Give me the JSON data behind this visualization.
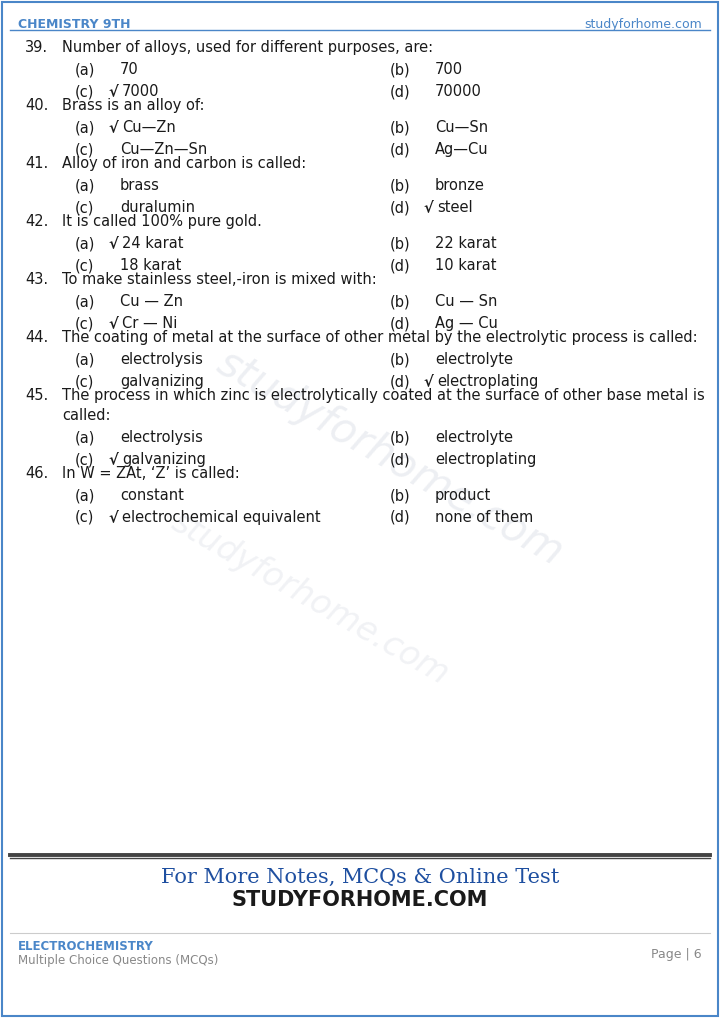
{
  "header_left": "CHEMISTRY 9TH",
  "header_right": "studyforhome.com",
  "header_color": "#4a86c8",
  "bg_color": "#ffffff",
  "border_color": "#4a86c8",
  "questions": [
    {
      "num": "39.",
      "text": "Number of alloys, used for different purposes, are:",
      "multiline": false,
      "options": [
        {
          "label": "(a)",
          "check": false,
          "text": "70"
        },
        {
          "label": "(b)",
          "check": false,
          "text": "700"
        },
        {
          "label": "(c)",
          "check": true,
          "text": "7000"
        },
        {
          "label": "(d)",
          "check": false,
          "text": "70000"
        }
      ]
    },
    {
      "num": "40.",
      "text": "Brass is an alloy of:",
      "multiline": false,
      "options": [
        {
          "label": "(a)",
          "check": true,
          "text": "Cu—Zn"
        },
        {
          "label": "(b)",
          "check": false,
          "text": "Cu—Sn"
        },
        {
          "label": "(c)",
          "check": false,
          "text": "Cu—Zn—Sn"
        },
        {
          "label": "(d)",
          "check": false,
          "text": "Ag—Cu"
        }
      ]
    },
    {
      "num": "41.",
      "text": "Alloy of iron and carbon is called:",
      "multiline": false,
      "options": [
        {
          "label": "(a)",
          "check": false,
          "text": "brass"
        },
        {
          "label": "(b)",
          "check": false,
          "text": "bronze"
        },
        {
          "label": "(c)",
          "check": false,
          "text": "duralumin"
        },
        {
          "label": "(d)",
          "check": true,
          "text": "steel"
        }
      ]
    },
    {
      "num": "42.",
      "text": "It is called 100% pure gold.",
      "multiline": false,
      "options": [
        {
          "label": "(a)",
          "check": true,
          "text": "24 karat"
        },
        {
          "label": "(b)",
          "check": false,
          "text": "22 karat"
        },
        {
          "label": "(c)",
          "check": false,
          "text": "18 karat"
        },
        {
          "label": "(d)",
          "check": false,
          "text": "10 karat"
        }
      ]
    },
    {
      "num": "43.",
      "text": "To make stainless steel,-iron is mixed with:",
      "multiline": false,
      "options": [
        {
          "label": "(a)",
          "check": false,
          "text": "Cu — Zn"
        },
        {
          "label": "(b)",
          "check": false,
          "text": "Cu — Sn"
        },
        {
          "label": "(c)",
          "check": true,
          "text": "Cr — Ni"
        },
        {
          "label": "(d)",
          "check": false,
          "text": "Ag — Cu"
        }
      ]
    },
    {
      "num": "44.",
      "text": "The coating of metal at the surface of other metal by the electrolytic process is called:",
      "multiline": false,
      "options": [
        {
          "label": "(a)",
          "check": false,
          "text": "electrolysis"
        },
        {
          "label": "(b)",
          "check": false,
          "text": "electrolyte"
        },
        {
          "label": "(c)",
          "check": false,
          "text": "galvanizing"
        },
        {
          "label": "(d)",
          "check": true,
          "text": "electroplating"
        }
      ]
    },
    {
      "num": "45.",
      "text": "The process in which zinc is electrolytically coated at the surface of other base metal is called:",
      "multiline": true,
      "text_line1": "The process in which zinc is electrolytically coated at the surface of other base metal is",
      "text_line2": "called:",
      "options": [
        {
          "label": "(a)",
          "check": false,
          "text": "electrolysis"
        },
        {
          "label": "(b)",
          "check": false,
          "text": "electrolyte"
        },
        {
          "label": "(c)",
          "check": true,
          "text": "galvanizing"
        },
        {
          "label": "(d)",
          "check": false,
          "text": "electroplating"
        }
      ]
    },
    {
      "num": "46.",
      "text": "In W = ZAt, ‘Z’ is called:",
      "multiline": false,
      "options": [
        {
          "label": "(a)",
          "check": false,
          "text": "constant"
        },
        {
          "label": "(b)",
          "check": false,
          "text": "product"
        },
        {
          "label": "(c)",
          "check": true,
          "text": "electrochemical equivalent"
        },
        {
          "label": "(d)",
          "check": false,
          "text": "none of them"
        }
      ]
    }
  ],
  "footer_line1": "For More Notes, MCQs & Online Test",
  "footer_line2": "STUDYFORHOME.COM",
  "footer_color": "#1e4fa0",
  "bottom_left1": "ELECTROCHEMISTRY",
  "bottom_left2": "Multiple Choice Questions (MCQs)",
  "bottom_right": "Page | 6",
  "bottom_color": "#4a86c8",
  "text_color": "#1a1a1a",
  "check_color": "#1a1a1a",
  "watermark_text": "studyforhome.com"
}
